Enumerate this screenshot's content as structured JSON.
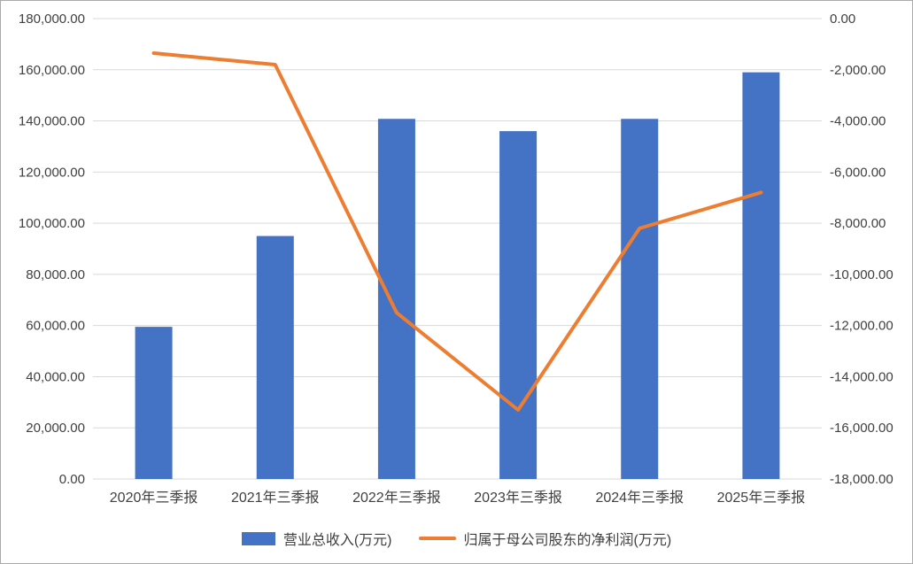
{
  "chart_data": {
    "type": "bar",
    "combo": "bar+line",
    "title": "",
    "categories": [
      "2020年三季报",
      "2021年三季报",
      "2022年三季报",
      "2023年三季报",
      "2024年三季报",
      "2025年三季报"
    ],
    "series": [
      {
        "name": "营业总收入(万元)",
        "type": "bar",
        "axis": "left",
        "color": "#4472C4",
        "values": [
          59500,
          95000,
          140800,
          136000,
          140800,
          159000
        ]
      },
      {
        "name": "归属于母公司股东的净利润(万元)",
        "type": "line",
        "axis": "right",
        "color": "#ED7D31",
        "values": [
          -1350,
          -1800,
          -11500,
          -15300,
          -8200,
          -6800
        ]
      }
    ],
    "left_axis": {
      "min": 0,
      "max": 180000,
      "step": 20000,
      "tick_labels": [
        "180,000.00",
        "160,000.00",
        "140,000.00",
        "120,000.00",
        "100,000.00",
        "80,000.00",
        "60,000.00",
        "40,000.00",
        "20,000.00",
        "0.00"
      ]
    },
    "right_axis": {
      "min": -18000,
      "max": 0,
      "step": 2000,
      "tick_labels": [
        "0.00",
        "-2,000.00",
        "-4,000.00",
        "-6,000.00",
        "-8,000.00",
        "-10,000.00",
        "-12,000.00",
        "-14,000.00",
        "-16,000.00",
        "-18,000.00"
      ]
    },
    "grid": true,
    "legend_position": "bottom"
  },
  "colors": {
    "bar": "#4472C4",
    "line": "#ED7D31",
    "grid": "#D9D9D9",
    "axis_text": "#404040",
    "border": "#ABABAB",
    "background": "#FFFFFF"
  }
}
